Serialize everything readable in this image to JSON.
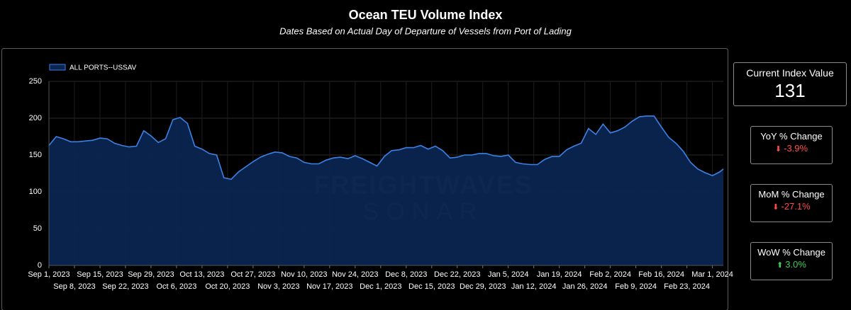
{
  "chart_data": {
    "type": "area",
    "title": "Ocean TEU Volume Index",
    "subtitle": "Dates Based on Actual Day of Departure of Vessels from Port of Lading",
    "watermark": {
      "brand": "FREIGHTWAVES",
      "product": "SONAR"
    },
    "x": [
      "2023-09-01",
      "2023-09-03",
      "2023-09-05",
      "2023-09-07",
      "2023-09-09",
      "2023-09-11",
      "2023-09-13",
      "2023-09-15",
      "2023-09-17",
      "2023-09-19",
      "2023-09-21",
      "2023-09-23",
      "2023-09-25",
      "2023-09-27",
      "2023-09-29",
      "2023-10-01",
      "2023-10-03",
      "2023-10-05",
      "2023-10-07",
      "2023-10-09",
      "2023-10-11",
      "2023-10-13",
      "2023-10-15",
      "2023-10-17",
      "2023-10-19",
      "2023-10-21",
      "2023-10-23",
      "2023-10-25",
      "2023-10-27",
      "2023-10-29",
      "2023-10-31",
      "2023-11-02",
      "2023-11-04",
      "2023-11-06",
      "2023-11-08",
      "2023-11-10",
      "2023-11-12",
      "2023-11-14",
      "2023-11-16",
      "2023-11-18",
      "2023-11-20",
      "2023-11-22",
      "2023-11-24",
      "2023-11-26",
      "2023-11-28",
      "2023-11-30",
      "2023-12-02",
      "2023-12-04",
      "2023-12-06",
      "2023-12-08",
      "2023-12-10",
      "2023-12-12",
      "2023-12-14",
      "2023-12-16",
      "2023-12-18",
      "2023-12-20",
      "2023-12-22",
      "2023-12-24",
      "2023-12-26",
      "2023-12-28",
      "2023-12-30",
      "2024-01-01",
      "2024-01-03",
      "2024-01-05",
      "2024-01-07",
      "2024-01-09",
      "2024-01-11",
      "2024-01-13",
      "2024-01-15",
      "2024-01-17",
      "2024-01-19",
      "2024-01-21",
      "2024-01-23",
      "2024-01-25",
      "2024-01-27",
      "2024-01-29",
      "2024-01-31",
      "2024-02-02",
      "2024-02-04",
      "2024-02-06",
      "2024-02-08",
      "2024-02-10",
      "2024-02-12",
      "2024-02-14",
      "2024-02-16",
      "2024-02-18",
      "2024-02-20",
      "2024-02-22",
      "2024-02-24",
      "2024-02-26",
      "2024-02-28",
      "2024-03-01",
      "2024-03-03",
      "2024-03-04"
    ],
    "series": [
      {
        "name": "ALL PORTS--USSAV",
        "color": "#3b82e6",
        "fill": "#0b2550",
        "values": [
          163,
          175,
          172,
          168,
          168,
          169,
          170,
          173,
          172,
          166,
          163,
          161,
          162,
          183,
          176,
          167,
          172,
          198,
          201,
          193,
          162,
          158,
          152,
          150,
          119,
          117,
          127,
          134,
          141,
          147,
          151,
          154,
          153,
          148,
          146,
          140,
          138,
          138,
          143,
          146,
          147,
          145,
          149,
          145,
          140,
          135,
          148,
          156,
          157,
          160,
          160,
          163,
          158,
          162,
          156,
          146,
          147,
          150,
          150,
          152,
          152,
          149,
          148,
          150,
          140,
          138,
          137,
          137,
          144,
          148,
          148,
          157,
          162,
          166,
          186,
          178,
          192,
          180,
          183,
          188,
          196,
          202,
          203,
          203,
          188,
          174,
          166,
          155,
          140,
          131,
          126,
          122,
          127,
          131
        ]
      }
    ],
    "xlim": [
      "2023-09-01",
      "2024-03-04"
    ],
    "xticks": [
      {
        "value": "2023-09-01",
        "label": "Sep 1, 2023"
      },
      {
        "value": "2023-09-08",
        "label": "Sep 8, 2023"
      },
      {
        "value": "2023-09-15",
        "label": "Sep 15, 2023"
      },
      {
        "value": "2023-09-22",
        "label": "Sep 22, 2023"
      },
      {
        "value": "2023-09-29",
        "label": "Sep 29, 2023"
      },
      {
        "value": "2023-10-06",
        "label": "Oct 6, 2023"
      },
      {
        "value": "2023-10-13",
        "label": "Oct 13, 2023"
      },
      {
        "value": "2023-10-20",
        "label": "Oct 20, 2023"
      },
      {
        "value": "2023-10-27",
        "label": "Oct 27, 2023"
      },
      {
        "value": "2023-11-03",
        "label": "Nov 3, 2023"
      },
      {
        "value": "2023-11-10",
        "label": "Nov 10, 2023"
      },
      {
        "value": "2023-11-17",
        "label": "Nov 17, 2023"
      },
      {
        "value": "2023-11-24",
        "label": "Nov 24, 2023"
      },
      {
        "value": "2023-12-01",
        "label": "Dec 1, 2023"
      },
      {
        "value": "2023-12-08",
        "label": "Dec 8, 2023"
      },
      {
        "value": "2023-12-15",
        "label": "Dec 15, 2023"
      },
      {
        "value": "2023-12-22",
        "label": "Dec 22, 2023"
      },
      {
        "value": "2023-12-29",
        "label": "Dec 29, 2023"
      },
      {
        "value": "2024-01-05",
        "label": "Jan 5, 2024"
      },
      {
        "value": "2024-01-12",
        "label": "Jan 12, 2024"
      },
      {
        "value": "2024-01-19",
        "label": "Jan 19, 2024"
      },
      {
        "value": "2024-01-26",
        "label": "Jan 26, 2024"
      },
      {
        "value": "2024-02-02",
        "label": "Feb 2, 2024"
      },
      {
        "value": "2024-02-09",
        "label": "Feb 9, 2024"
      },
      {
        "value": "2024-02-16",
        "label": "Feb 16, 2024"
      },
      {
        "value": "2024-02-23",
        "label": "Feb 23, 2024"
      },
      {
        "value": "2024-03-01",
        "label": "Mar 1, 2024"
      }
    ],
    "ylim": [
      0,
      250
    ],
    "yticks": [
      0,
      50,
      100,
      150,
      200,
      250
    ],
    "grid": true,
    "legend": "top-left"
  },
  "kpis": {
    "current": {
      "label": "Current Index Value",
      "value": "131"
    },
    "yoy": {
      "label": "YoY % Change",
      "value": "-3.9%"
    },
    "mom": {
      "label": "MoM % Change",
      "value": "-27.1%"
    },
    "wow": {
      "label": "WoW % Change",
      "value": "3.0%"
    }
  }
}
